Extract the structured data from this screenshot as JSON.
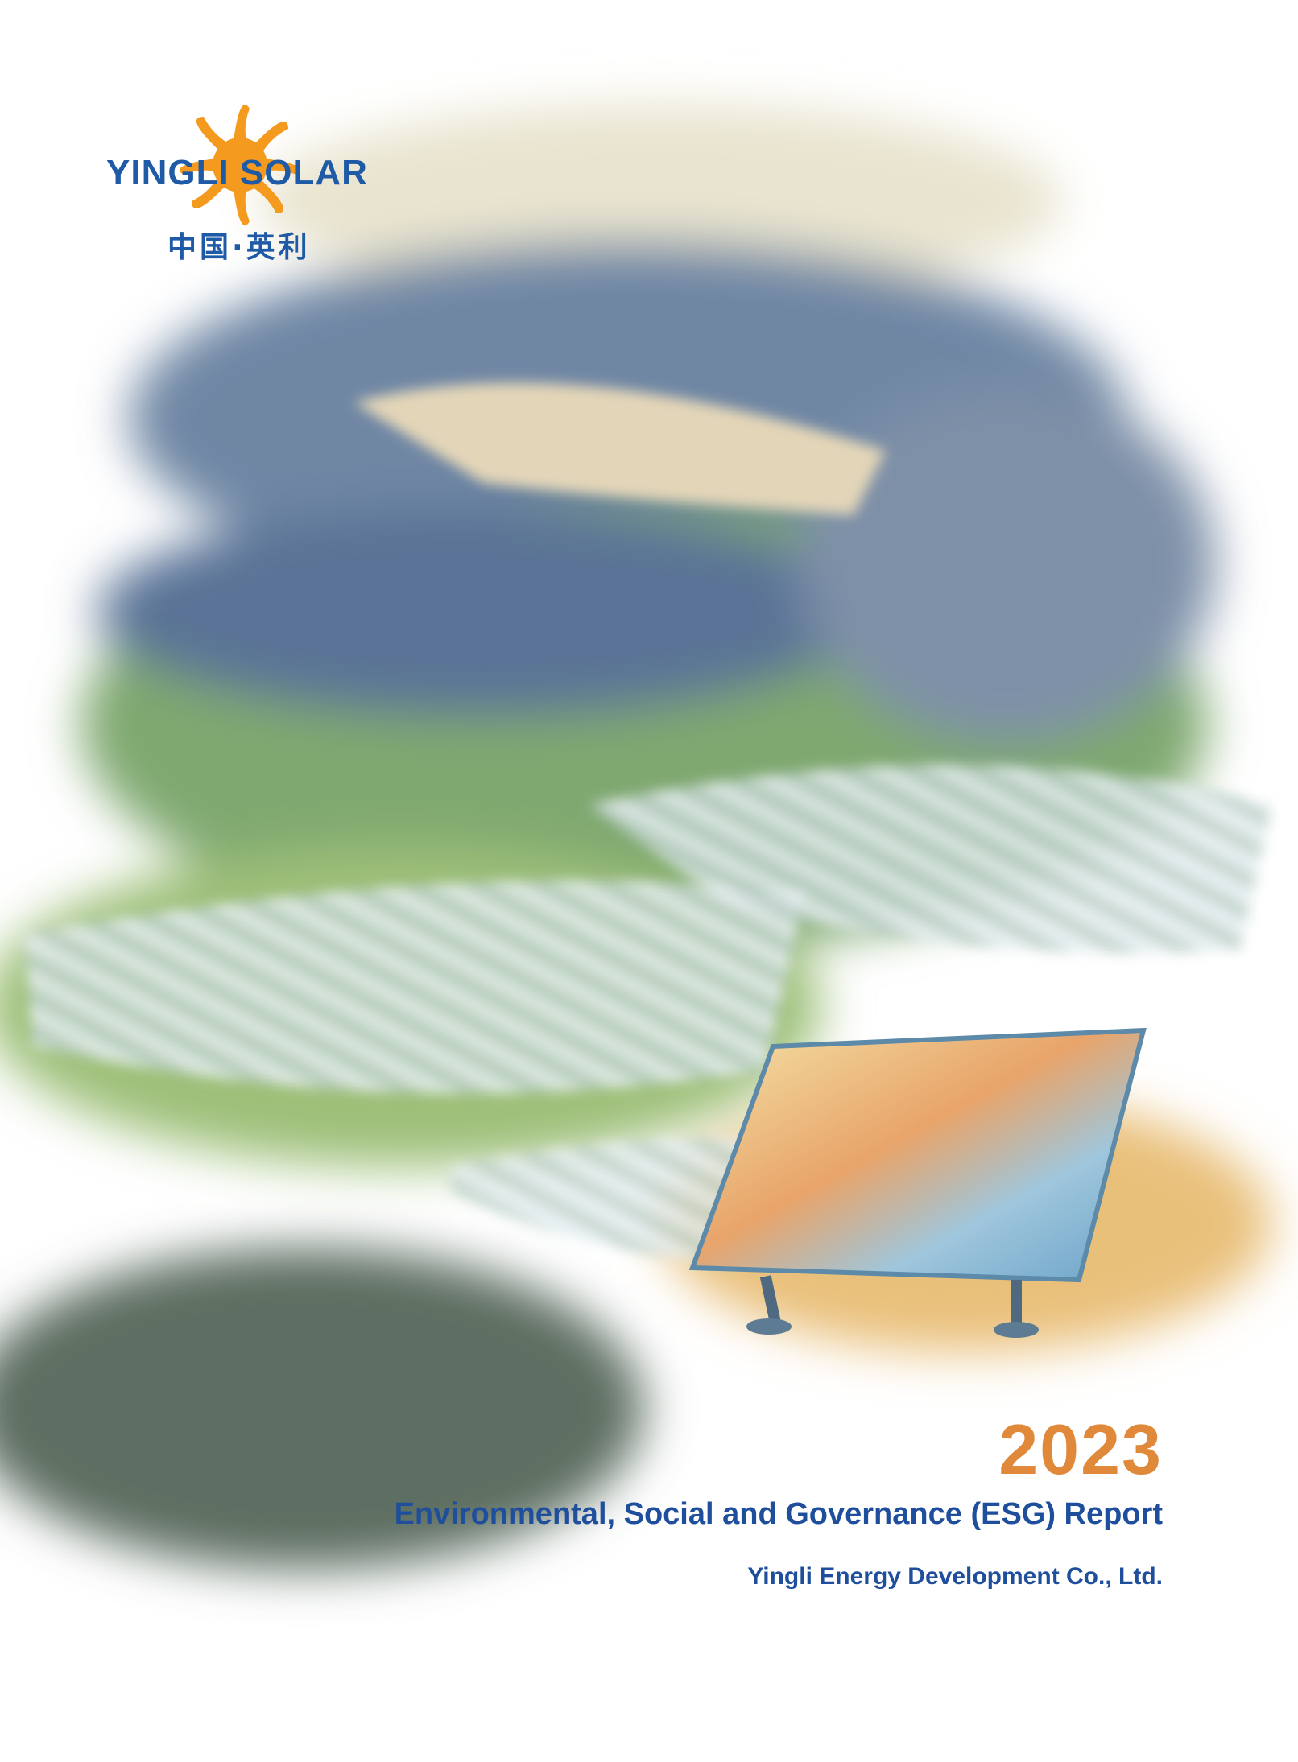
{
  "logo": {
    "name": "YINGLI SOLAR",
    "chinese": "中国·英利"
  },
  "cover": {
    "year": "2023",
    "report_title": "Environmental, Social and Governance (ESG) Report",
    "company": "Yingli Energy Development Co., Ltd."
  }
}
